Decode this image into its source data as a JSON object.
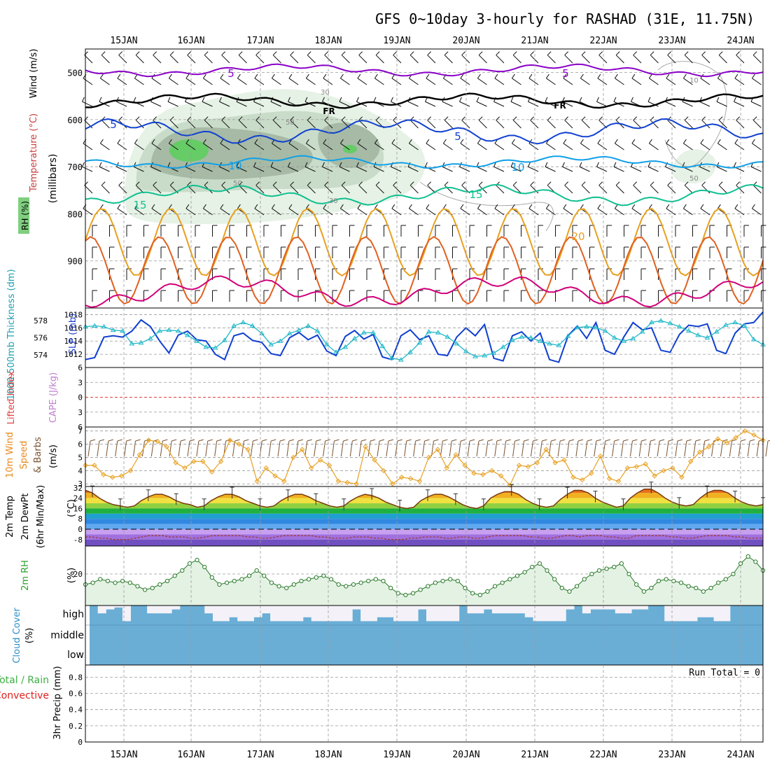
{
  "title": "GFS 0~10day 3-hourly for RASHAD (31E, 11.75N)",
  "days": [
    "15JAN",
    "16JAN",
    "17JAN",
    "18JAN",
    "19JAN",
    "20JAN",
    "21JAN",
    "22JAN",
    "23JAN",
    "24JAN"
  ],
  "colors": {
    "purple": "#8a00c8",
    "black": "#000000",
    "blue": "#1040d0",
    "skyblue": "#10a0e8",
    "teal": "#10c090",
    "orange": "#e8a020",
    "darkorange": "#e06020",
    "magenta": "#d0007a",
    "cyan": "#20b8c8",
    "rhgreen": "#2ca02c",
    "cloud": "#6aaed6",
    "precipgreen": "#3cb043",
    "precipred": "#e02020"
  },
  "chart_data": [
    {
      "type": "contour",
      "panel": "upper-air",
      "ylabels": {
        "rh": "RH (%)",
        "temperature": "Temperature (°C)",
        "wind": "Wind (m/s)",
        "pressure": "(millibars)"
      },
      "yticks": [
        500,
        600,
        700,
        800,
        900
      ],
      "ylim": [
        1000,
        450
      ],
      "temperature_contours": [
        {
          "level": "5",
          "label": "5",
          "color": "purple",
          "mean_hpa": 495,
          "amp": 6
        },
        {
          "level": "0",
          "label": "FR",
          "color": "black",
          "mean_hpa": 560,
          "amp": 7
        },
        {
          "level": "5",
          "label": "5",
          "color": "blue",
          "mean_hpa": 625,
          "amp": 12
        },
        {
          "level": "10",
          "label": "10",
          "color": "skyblue",
          "mean_hpa": 690,
          "amp": 6
        },
        {
          "level": "15",
          "label": "15",
          "color": "teal",
          "mean_hpa": 760,
          "amp": 10
        },
        {
          "level": "20",
          "label": "20",
          "color": "orange",
          "mean_hpa": 860,
          "amp": 40
        },
        {
          "level": "25",
          "label": "",
          "color": "darkorange",
          "mean_hpa": 920,
          "amp": 40
        },
        {
          "level": "30",
          "label": "",
          "color": "magenta",
          "mean_hpa": 965,
          "amp": 15
        }
      ],
      "rh_labels": [
        "30",
        "50",
        "50",
        "30",
        "10",
        "50"
      ]
    },
    {
      "type": "line",
      "panel": "thickness-slp",
      "ylabel_left": "1000-500mb Thickness (dm)",
      "ylabel_right": "SLP (mb)",
      "yticks_left": [
        574,
        576,
        578
      ],
      "yticks_right": [
        1012,
        1014,
        1016,
        1018
      ],
      "ylim_left": [
        572.5,
        579.5
      ],
      "ylim_right": [
        1010,
        1019
      ],
      "series": [
        {
          "name": "SLP (mb)",
          "color": "blue",
          "axis": "right",
          "values": [
            1011.2,
            1011.5,
            1014.6,
            1014.8,
            1014.6,
            1015.5,
            1017.2,
            1016.2,
            1014.0,
            1012.2,
            1014.9,
            1015.5,
            1014.2,
            1014.0,
            1012.0,
            1011.2,
            1014.8,
            1015.2,
            1014.1,
            1013.8,
            1012.1,
            1011.8,
            1014.5,
            1015.3,
            1014.2,
            1014.9,
            1012.5,
            1011.8,
            1014.7,
            1015.6,
            1014.3,
            1015.0,
            1011.6,
            1011.2,
            1014.8,
            1015.7,
            1014.2,
            1014.8,
            1012.0,
            1011.8,
            1014.6,
            1016.0,
            1014.8,
            1016.5,
            1011.4,
            1011.0,
            1014.8,
            1015.4,
            1014.0,
            1015.2,
            1011.2,
            1010.8,
            1014.8,
            1016.3,
            1014.4,
            1016.8,
            1012.6,
            1012.0,
            1014.6,
            1016.8,
            1015.7,
            1016.0,
            1012.6,
            1012.3,
            1015.0,
            1016.4,
            1016.2,
            1016.6,
            1012.6,
            1012.1,
            1015.2,
            1016.6,
            1016.8,
            1018.4
          ]
        },
        {
          "name": "1000-500mb Thickness (dm)",
          "color": "cyan",
          "axis": "left",
          "values": [
            577.3,
            577.4,
            577.3,
            576.9,
            576.8,
            575.3,
            575.4,
            575.9,
            576.8,
            576.9,
            576.8,
            576.3,
            575.6,
            574.9,
            574.8,
            575.7,
            577.4,
            577.8,
            577.4,
            576.5,
            575.2,
            575.6,
            576.5,
            576.9,
            577.4,
            576.8,
            575.2,
            574.3,
            574.9,
            575.9,
            576.6,
            576.6,
            575.0,
            573.6,
            573.4,
            574.3,
            575.4,
            576.7,
            576.6,
            576.1,
            575.3,
            574.4,
            573.8,
            573.9,
            574.2,
            574.9,
            575.7,
            576.1,
            576.0,
            575.6,
            575.3,
            575.1,
            576.2,
            577.2,
            577.3,
            577.2,
            576.8,
            576.0,
            575.6,
            575.9,
            576.7,
            577.8,
            578.0,
            577.7,
            577.3,
            576.8,
            576.3,
            576.0,
            576.7,
            577.5,
            577.8,
            577.4,
            575.8,
            575.2
          ]
        }
      ]
    },
    {
      "type": "line",
      "panel": "cape-li",
      "ylabel_left": "Lifted Index",
      "ylabel_right": "CAPE (J/kg)",
      "yticks": [
        6,
        3,
        0,
        -3,
        -6
      ],
      "ytick_labels": [
        "6",
        "3",
        "0",
        "3",
        "6"
      ],
      "ylim": [
        -6,
        6
      ],
      "series": [
        {
          "name": "Lifted Index",
          "values": [],
          "zero_line": 0
        }
      ]
    },
    {
      "type": "line",
      "panel": "10m-wind",
      "ylabel": "10m Wind Speed & Barbs (m/s)",
      "ylabel_parts": [
        "10m Wind",
        "Speed",
        "& Barbs",
        "(m/s)"
      ],
      "yticks": [
        3,
        4,
        5,
        6,
        7
      ],
      "ylim": [
        2.8,
        7.3
      ],
      "series": [
        {
          "name": "10m Wind Speed",
          "color": "orange",
          "values": [
            4.4,
            4.4,
            3.7,
            3.5,
            3.6,
            4.0,
            5.2,
            6.3,
            6.2,
            5.8,
            4.6,
            4.2,
            4.7,
            4.7,
            3.9,
            4.7,
            6.3,
            6.0,
            5.6,
            3.2,
            4.2,
            3.6,
            3.2,
            5.0,
            5.6,
            4.2,
            4.8,
            4.4,
            3.2,
            3.1,
            3.0,
            5.8,
            4.8,
            4.0,
            3.0,
            3.5,
            3.4,
            3.2,
            5.0,
            5.6,
            4.2,
            5.2,
            4.4,
            3.8,
            3.7,
            4.0,
            3.6,
            2.9,
            4.4,
            4.3,
            4.6,
            5.6,
            4.6,
            4.8,
            3.5,
            3.3,
            3.8,
            5.1,
            3.4,
            3.2,
            4.2,
            4.3,
            4.5,
            3.6,
            4.0,
            4.2,
            3.5,
            4.7,
            5.4,
            5.8,
            6.4,
            6.1,
            6.5,
            7.0,
            6.7,
            6.3
          ]
        }
      ]
    },
    {
      "type": "area",
      "panel": "2m-temp",
      "ylabel_parts": [
        "2m Temp",
        "2m DewPt",
        "(6hr Min/Max)"
      ],
      "yunit": "(°C)",
      "yticks": [
        32,
        24,
        16,
        8,
        0,
        -8
      ],
      "ylim": [
        -13,
        33
      ],
      "series": [
        {
          "name": "2m Temp",
          "values": [
            30,
            28,
            24,
            21,
            19,
            18,
            17,
            18,
            22,
            25,
            27,
            27,
            25,
            22,
            20,
            19,
            17,
            18,
            22,
            25,
            27,
            27,
            25,
            22,
            20,
            18,
            17,
            18,
            22,
            25,
            27,
            27,
            25,
            22,
            20,
            18,
            17,
            18,
            22,
            25,
            27,
            26,
            24,
            21,
            19,
            17,
            16,
            17,
            22,
            25,
            27,
            27,
            25,
            22,
            19,
            17,
            16,
            18,
            24,
            27,
            29,
            29,
            27,
            23,
            20,
            18,
            17,
            18,
            23,
            27,
            30,
            30,
            28,
            24,
            21,
            19,
            17,
            18,
            24,
            28,
            31,
            31,
            28,
            24,
            21,
            19,
            18,
            19,
            24,
            28,
            30,
            30,
            28,
            24,
            21,
            19,
            18,
            19
          ]
        },
        {
          "name": "2m DewPt",
          "values": [
            -6,
            -6,
            -7,
            -7,
            -8,
            -8,
            -8,
            -7,
            -6,
            -5,
            -5,
            -5,
            -6,
            -6,
            -6,
            -7,
            -7,
            -6,
            -5,
            -5,
            -5,
            -5,
            -5,
            -6,
            -6,
            -7,
            -7,
            -6,
            -5,
            -5,
            -5,
            -5,
            -5,
            -6,
            -6,
            -7,
            -7,
            -7,
            -6,
            -6,
            -6,
            -7,
            -7,
            -8,
            -8,
            -8,
            -7,
            -7,
            -6,
            -6,
            -6,
            -7,
            -7,
            -6,
            -6,
            -7,
            -7,
            -6,
            -5,
            -5,
            -5,
            -5,
            -5,
            -6,
            -6,
            -7,
            -7,
            -6,
            -5,
            -5,
            -6,
            -5,
            -5,
            -5,
            -6,
            -6,
            -7,
            -7,
            -5,
            -5,
            -5,
            -5,
            -5,
            -6,
            -6,
            -7,
            -7,
            -6,
            -5,
            -5,
            -5,
            -5,
            -6,
            -6,
            -7,
            -7,
            -7
          ]
        }
      ]
    },
    {
      "type": "line",
      "panel": "2m-rh",
      "ylabel": "2m RH",
      "yunit": "(%)",
      "yticks": [
        20
      ],
      "ylim": [
        2,
        36
      ],
      "series": [
        {
          "name": "2m RH",
          "color": "rhgreen",
          "values": [
            14,
            15,
            17,
            16,
            15,
            16,
            15,
            13,
            11,
            12,
            14,
            16,
            19,
            22,
            26,
            28,
            24,
            18,
            14,
            15,
            16,
            17,
            19,
            22,
            19,
            15,
            13,
            12,
            14,
            16,
            17,
            18,
            19,
            17,
            14,
            13,
            14,
            15,
            16,
            17,
            16,
            12,
            9,
            8,
            9,
            11,
            13,
            15,
            16,
            17,
            16,
            12,
            9,
            8,
            10,
            13,
            15,
            17,
            19,
            21,
            24,
            26,
            22,
            17,
            12,
            10,
            13,
            17,
            20,
            22,
            23,
            24,
            26,
            20,
            14,
            10,
            12,
            16,
            17,
            16,
            15,
            13,
            12,
            10,
            12,
            15,
            17,
            20,
            26,
            30,
            27,
            22
          ]
        }
      ]
    },
    {
      "type": "bar",
      "panel": "cloud-cover",
      "ylabel": "Cloud Cover",
      "yunit": "(%)",
      "layers": [
        "high",
        "middle",
        "low"
      ],
      "high_values": [
        100,
        60,
        80,
        90,
        20,
        100,
        100,
        60,
        60,
        60,
        80,
        100,
        100,
        100,
        60,
        20,
        20,
        40,
        20,
        20,
        40,
        60,
        20,
        20,
        20,
        20,
        40,
        20,
        20,
        20,
        20,
        20,
        80,
        20,
        20,
        40,
        40,
        20,
        20,
        20,
        80,
        20,
        20,
        20,
        20,
        100,
        60,
        60,
        80,
        60,
        60,
        60,
        60,
        40,
        20,
        20,
        20,
        20,
        80,
        100,
        60,
        80,
        80,
        80,
        60,
        60,
        80,
        80,
        100,
        100,
        20,
        20,
        20,
        20,
        40,
        40,
        20,
        20,
        100,
        100,
        100,
        100
      ]
    },
    {
      "type": "bar",
      "panel": "precip",
      "ylabel": "3hr Precip (mm)",
      "ylabel_left_parts": [
        "Total / Rain",
        "Convective"
      ],
      "yticks": [
        0,
        0.2,
        0.4,
        0.6,
        0.8
      ],
      "ylim": [
        0,
        0.95
      ],
      "run_total": "Run Total = 0",
      "values": []
    }
  ]
}
